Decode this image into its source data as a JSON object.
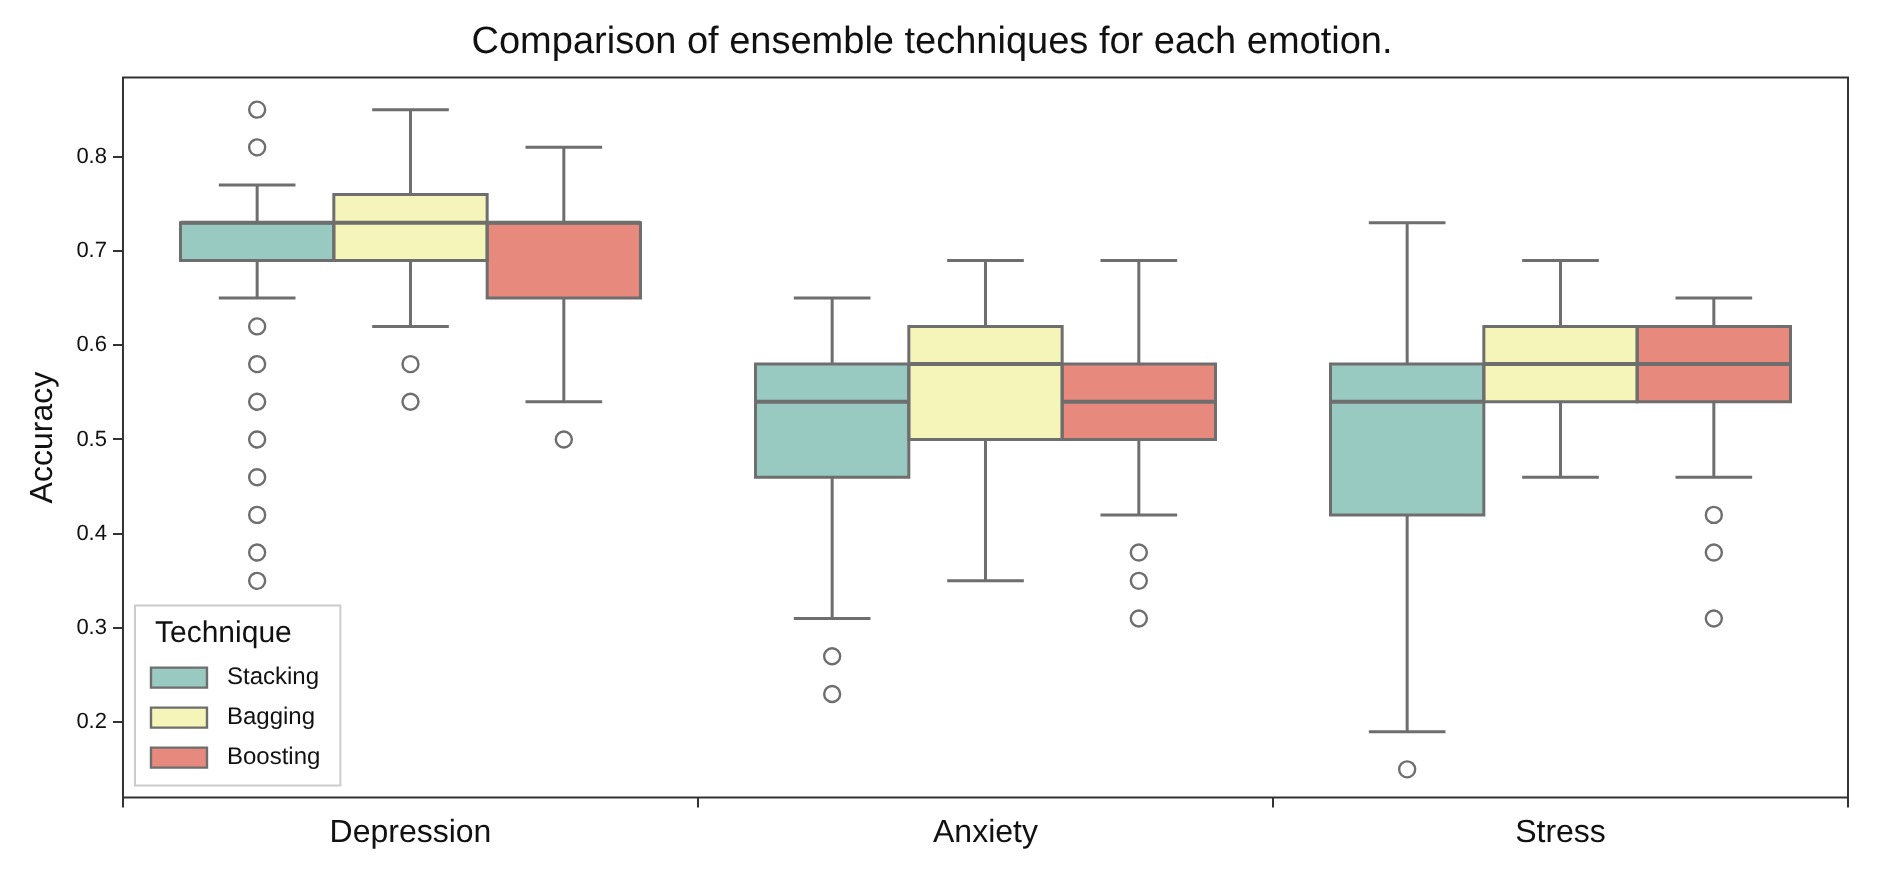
{
  "chart_data": {
    "type": "box",
    "title": "Comparison of ensemble techniques for each emotion.",
    "ylabel": "Accuracy",
    "legend_title": "Technique",
    "legend": "bottom left",
    "categories": [
      "Depression",
      "Anxiety",
      "Stress"
    ],
    "ylim": [
      0.12,
      0.884
    ],
    "yticks": [
      0.2,
      0.3,
      0.4,
      0.5,
      0.6,
      0.7,
      0.8
    ],
    "series": [
      {
        "name": "Stacking",
        "color": "#98cac2",
        "boxes": [
          {
            "low": 0.65,
            "q1": 0.69,
            "median": 0.73,
            "q3": 0.73,
            "high": 0.77,
            "outliers": [
              0.85,
              0.81,
              0.62,
              0.58,
              0.54,
              0.5,
              0.46,
              0.42,
              0.38,
              0.35
            ]
          },
          {
            "low": 0.31,
            "q1": 0.46,
            "median": 0.54,
            "q3": 0.58,
            "high": 0.65,
            "outliers": [
              0.27,
              0.23
            ]
          },
          {
            "low": 0.19,
            "q1": 0.42,
            "median": 0.54,
            "q3": 0.58,
            "high": 0.73,
            "outliers": [
              0.15
            ]
          }
        ]
      },
      {
        "name": "Bagging",
        "color": "#f5f5b9",
        "boxes": [
          {
            "low": 0.62,
            "q1": 0.69,
            "median": 0.73,
            "q3": 0.76,
            "high": 0.85,
            "outliers": [
              0.58,
              0.54
            ]
          },
          {
            "low": 0.35,
            "q1": 0.5,
            "median": 0.58,
            "q3": 0.62,
            "high": 0.69
          },
          {
            "low": 0.46,
            "q1": 0.54,
            "median": 0.58,
            "q3": 0.62,
            "high": 0.69
          }
        ]
      },
      {
        "name": "Boosting",
        "color": "#e8897e",
        "boxes": [
          {
            "low": 0.54,
            "q1": 0.65,
            "median": 0.73,
            "q3": 0.73,
            "high": 0.81,
            "outliers": [
              0.5
            ]
          },
          {
            "low": 0.42,
            "q1": 0.5,
            "median": 0.54,
            "q3": 0.58,
            "high": 0.69,
            "outliers": [
              0.38,
              0.35,
              0.31
            ]
          },
          {
            "low": 0.46,
            "q1": 0.54,
            "median": 0.58,
            "q3": 0.62,
            "high": 0.65,
            "outliers": [
              0.42,
              0.38,
              0.31
            ]
          }
        ]
      }
    ]
  }
}
